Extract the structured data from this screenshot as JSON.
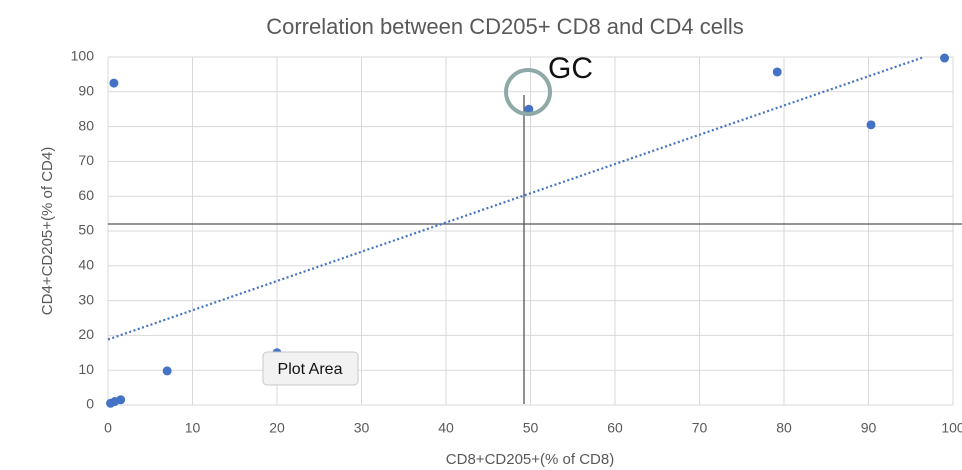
{
  "chart_data": {
    "type": "scatter",
    "title": "Correlation between CD205+ CD8 and CD4 cells",
    "x_label": "CD8+CD205+(% of CD8)",
    "y_label": "CD4+CD205+(% of CD4)",
    "series": [
      {
        "name": "CD4+CD205+",
        "color": "#4472c4",
        "x": [
          0.3,
          0.8,
          1.5,
          0.7,
          7,
          20,
          49.8,
          79.2,
          90.3,
          99
        ],
        "values": [
          0.5,
          1,
          1.5,
          92.5,
          9.8,
          15,
          85,
          95.7,
          80.5,
          99.7
        ]
      }
    ],
    "trendline": "linear",
    "xlim": [
      0,
      100
    ],
    "xticks": [
      0,
      10,
      20,
      30,
      40,
      50,
      60,
      70,
      80,
      90,
      100
    ],
    "ylim": [
      0,
      100
    ],
    "yticks": [
      0,
      10,
      20,
      30,
      40,
      50,
      60,
      70,
      80,
      90,
      100
    ],
    "grid": true,
    "annotation": "GC",
    "tooltip": "Plot Area"
  }
}
